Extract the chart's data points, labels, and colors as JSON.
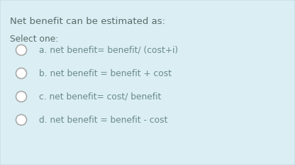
{
  "background_color": "#daeef3",
  "border_color": "#c5dfe8",
  "title": "Net benefit can be estimated as:",
  "subtitle": "Select one:",
  "options": [
    "a. net benefit= benefit/ (cost+i)",
    "b. net benefit = benefit + cost",
    "c. net benefit= cost/ benefit",
    "d. net benefit = benefit - cost"
  ],
  "title_color": "#5a6a6a",
  "option_color": "#6a8a8a",
  "circle_edge_color": "#aaaaaa",
  "title_fontsize": 9.5,
  "subtitle_fontsize": 8.8,
  "option_fontsize": 8.8,
  "fig_width": 4.16,
  "fig_height": 2.34
}
